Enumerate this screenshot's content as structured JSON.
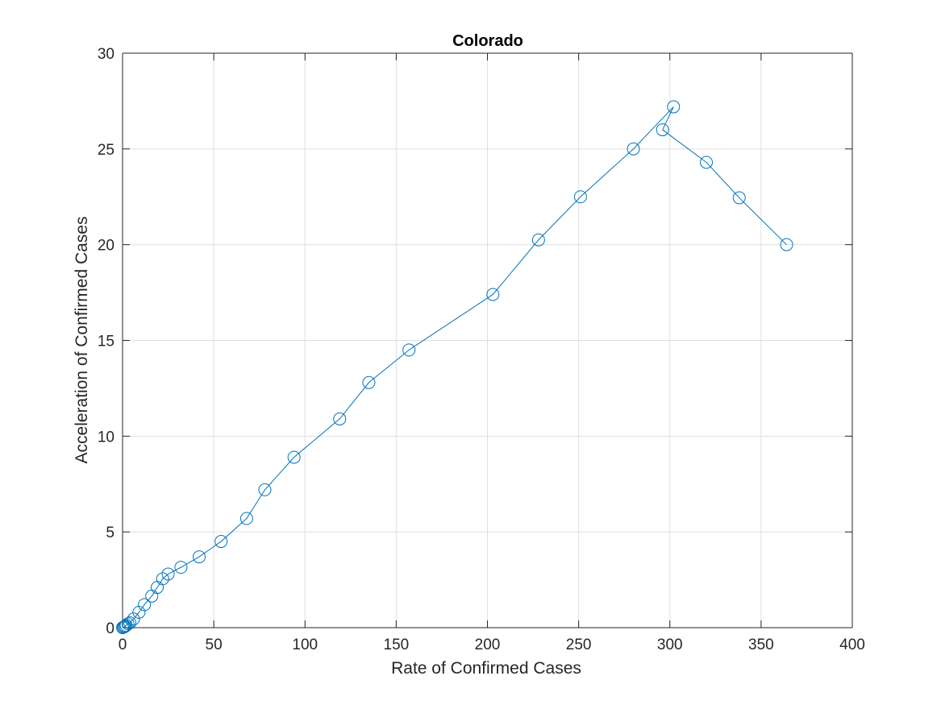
{
  "chart_data": {
    "type": "line",
    "title": "Colorado",
    "xlabel": "Rate of Confirmed Cases",
    "ylabel": "Acceleration of Confirmed Cases",
    "xlim": [
      0,
      400
    ],
    "ylim": [
      0,
      30
    ],
    "x_ticks": [
      0,
      50,
      100,
      150,
      200,
      250,
      300,
      350,
      400
    ],
    "y_ticks": [
      0,
      5,
      10,
      15,
      20,
      25,
      30
    ],
    "grid": true,
    "marker": "circle",
    "line_color": "#0072BD",
    "series": [
      {
        "points": [
          [
            0,
            0
          ],
          [
            0.5,
            0.02
          ],
          [
            1,
            0.05
          ],
          [
            1.5,
            0.08
          ],
          [
            2,
            0.12
          ],
          [
            3,
            0.2
          ],
          [
            4,
            0.25
          ],
          [
            6,
            0.45
          ],
          [
            9,
            0.8
          ],
          [
            12,
            1.2
          ],
          [
            16,
            1.65
          ],
          [
            19,
            2.1
          ],
          [
            22,
            2.55
          ],
          [
            25,
            2.8
          ],
          [
            32,
            3.15
          ],
          [
            42,
            3.7
          ],
          [
            54,
            4.5
          ],
          [
            68,
            5.7
          ],
          [
            78,
            7.2
          ],
          [
            94,
            8.9
          ],
          [
            119,
            10.9
          ],
          [
            135,
            12.8
          ],
          [
            157,
            14.5
          ],
          [
            203,
            17.4
          ],
          [
            228,
            20.25
          ],
          [
            251,
            22.5
          ],
          [
            280,
            25.0
          ],
          [
            302,
            27.2
          ],
          [
            296,
            26.0
          ],
          [
            320,
            24.3
          ],
          [
            338,
            22.45
          ],
          [
            364,
            20.0
          ]
        ]
      }
    ]
  }
}
